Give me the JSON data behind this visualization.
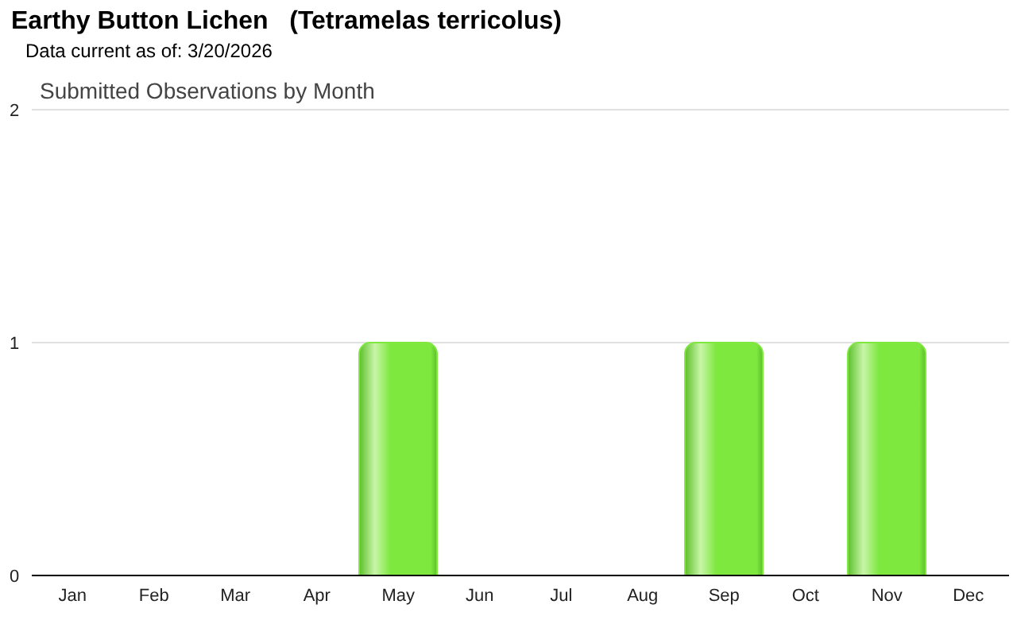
{
  "chart_data": {
    "type": "bar",
    "title": "Earthy Button Lichen   (Tetramelas terricolus)",
    "subtitle": "Data current as of: 3/20/2026",
    "annotations": [
      "Submitted Observations by Month"
    ],
    "categories": [
      "Jan",
      "Feb",
      "Mar",
      "Apr",
      "May",
      "Jun",
      "Jul",
      "Aug",
      "Sep",
      "Oct",
      "Nov",
      "Dec"
    ],
    "values": [
      0,
      0,
      0,
      0,
      1,
      0,
      0,
      0,
      1,
      0,
      1,
      0
    ],
    "color": "#7ee83f",
    "ylim": [
      0,
      2
    ],
    "yticks": [
      0,
      1,
      2
    ],
    "grid": "y"
  }
}
